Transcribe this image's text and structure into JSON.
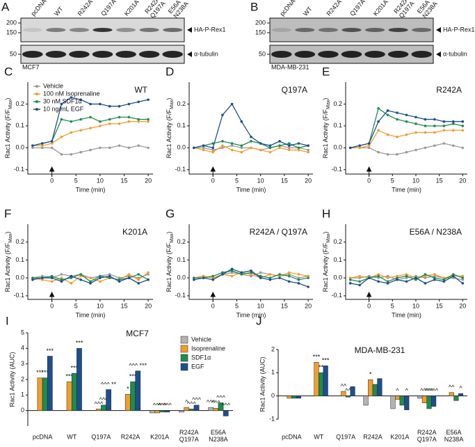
{
  "blots": [
    {
      "label": "A",
      "lanes": [
        "pcDNA",
        "WT",
        "R242A",
        "Q197A",
        "K201A",
        "R242A\nQ197A",
        "E56A\nN238A"
      ],
      "markers": [
        200,
        150,
        50
      ],
      "bands": [
        "HA-P-Rex1",
        "α-tubulin"
      ],
      "cell_line": "MCF7"
    },
    {
      "label": "B",
      "lanes": [
        "pcDNA",
        "WT",
        "R242A",
        "Q197A",
        "K201A",
        "R242A\nQ197A",
        "E56A\nN238A"
      ],
      "markers": [
        200,
        150,
        50
      ],
      "bands": [
        "HA-P-Rex1",
        "α-tubulin"
      ],
      "cell_line": "MDA-MB-231"
    }
  ],
  "chart_data": [
    {
      "type": "line",
      "label": "C",
      "title": "WT",
      "xlabel": "Time (min)",
      "ylabel": "Rac1 Activity (F/F",
      "ylabel_sub": "Max",
      "ylabel_end": ")",
      "legend": "upper left",
      "x": [
        -4,
        -2,
        0,
        2,
        4,
        6,
        8,
        10,
        12,
        14,
        16,
        18,
        20
      ],
      "xlim": [
        -5,
        21
      ],
      "xticks": [
        0,
        5,
        10,
        15,
        20
      ],
      "ylim": [
        -0.12,
        0.3
      ],
      "yticks": [
        -0.1,
        {
          "value": 0,
          "label": "0.0"
        },
        0.1,
        0.2
      ],
      "series": [
        {
          "name": "Vehicle",
          "color": "#9a9a9a",
          "values": [
            0,
            0,
            0,
            -0.03,
            -0.03,
            -0.02,
            -0.01,
            0,
            0,
            0.01,
            0,
            0.01,
            0
          ]
        },
        {
          "name": "100 nM Isoprenaline",
          "color": "#f39c2c",
          "values": [
            0.01,
            0.01,
            0.02,
            0.05,
            0.07,
            0.08,
            0.09,
            0.1,
            0.11,
            0.11,
            0.12,
            0.12,
            0.12
          ]
        },
        {
          "name": "30 nM SDF1α",
          "color": "#1e8c4e",
          "values": [
            0.01,
            0.02,
            0.03,
            0.13,
            0.12,
            0.13,
            0.14,
            0.12,
            0.13,
            0.14,
            0.14,
            0.13,
            0.13
          ]
        },
        {
          "name": "10 ng/mL EGF",
          "color": "#1d4f8c",
          "values": [
            0.01,
            0.02,
            0.03,
            0.2,
            0.23,
            0.22,
            0.2,
            0.2,
            0.19,
            0.19,
            0.2,
            0.21,
            0.22
          ]
        }
      ]
    },
    {
      "type": "line",
      "label": "D",
      "title": "Q197A",
      "xlabel": "Time (min)",
      "ylabel": "Rac1 Activity (F/F",
      "ylabel_sub": "Max",
      "ylabel_end": ")",
      "x": [
        -4,
        -2,
        0,
        2,
        4,
        6,
        8,
        10,
        12,
        14,
        16,
        18,
        20
      ],
      "xlim": [
        -5,
        21
      ],
      "xticks": [
        0,
        5,
        10,
        15,
        20
      ],
      "ylim": [
        -0.12,
        0.3
      ],
      "yticks": [
        -0.1,
        {
          "value": 0,
          "label": "0.0"
        },
        0.1,
        0.2
      ],
      "series": [
        {
          "color": "#9a9a9a",
          "values": [
            0,
            0,
            -0.01,
            0,
            0.01,
            0,
            0,
            -0.01,
            0,
            0.01,
            0,
            0,
            -0.01
          ]
        },
        {
          "color": "#f39c2c",
          "values": [
            0,
            -0.01,
            -0.02,
            0.01,
            -0.01,
            -0.02,
            0,
            -0.01,
            -0.02,
            0,
            -0.01,
            -0.01,
            -0.02
          ]
        },
        {
          "color": "#1e8c4e",
          "values": [
            0,
            0.01,
            0.02,
            0.03,
            0.02,
            0.01,
            0.03,
            0.02,
            0,
            0.01,
            0.02,
            0,
            0.01
          ]
        },
        {
          "color": "#1d4f8c",
          "values": [
            0,
            0.01,
            0,
            0.15,
            0.2,
            0.12,
            0.05,
            0.02,
            0.01,
            0.03,
            0.01,
            0.02,
            0.01
          ]
        }
      ]
    },
    {
      "type": "line",
      "label": "E",
      "title": "R242A",
      "xlabel": "Time (min)",
      "ylabel": "Rac1 Activity (F/F",
      "ylabel_sub": "Max",
      "ylabel_end": ")",
      "x": [
        -4,
        -2,
        0,
        2,
        4,
        6,
        8,
        10,
        12,
        14,
        16,
        18,
        20
      ],
      "xlim": [
        -5,
        21
      ],
      "xticks": [
        0,
        5,
        10,
        15,
        20
      ],
      "ylim": [
        -0.12,
        0.3
      ],
      "yticks": [
        -0.1,
        {
          "value": 0,
          "label": "0.0"
        },
        0.1,
        0.2
      ],
      "series": [
        {
          "color": "#9a9a9a",
          "values": [
            0,
            0,
            0,
            -0.02,
            -0.03,
            -0.03,
            -0.02,
            -0.01,
            0,
            0.01,
            0.02,
            0.01,
            0
          ]
        },
        {
          "color": "#f39c2c",
          "values": [
            0,
            0,
            0.01,
            0.08,
            0.06,
            0.05,
            0.06,
            0.07,
            0.07,
            0.07,
            0.08,
            0.08,
            0.08
          ]
        },
        {
          "color": "#1e8c4e",
          "values": [
            0,
            0.01,
            0.02,
            0.18,
            0.15,
            0.13,
            0.12,
            0.11,
            0.1,
            0.1,
            0.1,
            0.11,
            0.1
          ]
        },
        {
          "color": "#1d4f8c",
          "values": [
            0,
            0.01,
            0.02,
            0.12,
            0.17,
            0.16,
            0.15,
            0.14,
            0.13,
            0.13,
            0.12,
            0.12,
            0.12
          ]
        }
      ]
    },
    {
      "type": "line",
      "label": "F",
      "title": "K201A",
      "xlabel": "Time (min)",
      "ylabel": "Rac1 Activity (F/F",
      "ylabel_sub": "Max",
      "ylabel_end": ")",
      "x": [
        -4,
        -2,
        0,
        2,
        4,
        6,
        8,
        10,
        12,
        14,
        16,
        18,
        20
      ],
      "xlim": [
        -5,
        21
      ],
      "xticks": [
        0,
        5,
        10,
        15,
        20
      ],
      "ylim": [
        -0.12,
        0.3
      ],
      "yticks": [
        -0.1,
        {
          "value": 0,
          "label": "0.0"
        },
        0.1,
        0.2
      ],
      "series": [
        {
          "color": "#9a9a9a",
          "values": [
            0,
            0.01,
            0,
            0.02,
            0.01,
            0.02,
            0,
            0.01,
            0.02,
            0,
            0.01,
            0,
            0.02
          ]
        },
        {
          "color": "#f39c2c",
          "values": [
            0,
            -0.01,
            -0.02,
            0,
            -0.03,
            0.01,
            0,
            -0.02,
            0,
            -0.01,
            0.02,
            -0.01,
            0.03
          ]
        },
        {
          "color": "#1e8c4e",
          "values": [
            0,
            0,
            0.01,
            -0.01,
            0,
            0.02,
            -0.02,
            0.01,
            0,
            -0.01,
            0,
            0.02,
            -0.01
          ]
        },
        {
          "color": "#1d4f8c",
          "values": [
            -0.01,
            0,
            0,
            -0.02,
            0.01,
            -0.01,
            -0.03,
            0,
            0.01,
            -0.02,
            0,
            -0.03,
            -0.01
          ]
        }
      ]
    },
    {
      "type": "line",
      "label": "G",
      "title": "R242A / Q197A",
      "xlabel": "Time (min)",
      "ylabel": "Rac1 Activity (F/F",
      "ylabel_sub": "Max",
      "ylabel_end": ")",
      "x": [
        -4,
        -2,
        0,
        2,
        4,
        6,
        8,
        10,
        12,
        14,
        16,
        18,
        20
      ],
      "xlim": [
        -5,
        21
      ],
      "xticks": [
        0,
        5,
        10,
        15,
        20
      ],
      "ylim": [
        -0.12,
        0.3
      ],
      "yticks": [
        -0.1,
        {
          "value": 0,
          "label": "0.0"
        },
        0.1,
        0.2
      ],
      "series": [
        {
          "color": "#9a9a9a",
          "values": [
            0,
            0.01,
            0,
            0.02,
            0.03,
            0.02,
            0.01,
            0.03,
            0.02,
            0.01,
            0.02,
            0,
            0.01
          ]
        },
        {
          "color": "#f39c2c",
          "values": [
            0,
            0.01,
            0,
            0.02,
            0.01,
            0.03,
            0.02,
            0,
            0.02,
            0.01,
            0.03,
            0.02,
            0.01
          ]
        },
        {
          "color": "#1e8c4e",
          "values": [
            0,
            0,
            0.01,
            0.03,
            0.04,
            0.02,
            0.03,
            0.01,
            0,
            0.02,
            0.01,
            -0.01,
            0
          ]
        },
        {
          "color": "#1d4f8c",
          "values": [
            -0.01,
            0,
            -0.01,
            0.02,
            0.05,
            0.03,
            0.04,
            0,
            -0.01,
            0,
            -0.02,
            -0.03,
            -0.05
          ]
        }
      ]
    },
    {
      "type": "line",
      "label": "H",
      "title": "E56A / N238A",
      "xlabel": "Time (min)",
      "ylabel": "Rac1 Activity (F/F",
      "ylabel_sub": "Max",
      "ylabel_end": ")",
      "x": [
        -4,
        -2,
        0,
        2,
        4,
        6,
        8,
        10,
        12,
        14,
        16,
        18,
        20
      ],
      "xlim": [
        -5,
        21
      ],
      "xticks": [
        0,
        5,
        10,
        15,
        20
      ],
      "ylim": [
        -0.12,
        0.3
      ],
      "yticks": [
        -0.1,
        {
          "value": 0,
          "label": "0.0"
        },
        0.1,
        0.2
      ],
      "series": [
        {
          "color": "#9a9a9a",
          "values": [
            0,
            0,
            0.01,
            0,
            0.01,
            -0.01,
            0,
            0.01,
            0,
            0.01,
            0,
            0,
            -0.01
          ]
        },
        {
          "color": "#f39c2c",
          "values": [
            0,
            0.01,
            0,
            0.02,
            0,
            0.01,
            0.02,
            0,
            0.01,
            0.02,
            0,
            0.01,
            0.01
          ]
        },
        {
          "color": "#1e8c4e",
          "values": [
            -0.01,
            -0.02,
            0,
            0.01,
            -0.02,
            0,
            0.01,
            -0.01,
            0.02,
            0,
            -0.01,
            0.02,
            0
          ]
        },
        {
          "color": "#1d4f8c",
          "values": [
            -0.03,
            -0.04,
            0,
            -0.02,
            -0.03,
            -0.01,
            -0.02,
            0,
            -0.03,
            -0.01,
            -0.02,
            0.01,
            -0.03
          ]
        }
      ]
    },
    {
      "type": "bar",
      "label": "I",
      "title": "MCF7",
      "ylabel": "Rac1 Activity (AUC)",
      "legend": "upper right",
      "categories": [
        "pcDNA",
        "WT",
        "Q197A",
        "R242A",
        "K201A",
        "R242A\nQ197A",
        "E56A\nN238A"
      ],
      "ylim": [
        -1,
        5
      ],
      "yticks": [
        0,
        1,
        2,
        3,
        4,
        5
      ],
      "series": [
        {
          "name": "Vehicle",
          "color": "#b3b3b3",
          "values": [
            0,
            0,
            0,
            0,
            -0.15,
            -0.1,
            0.2
          ],
          "significance": [
            null,
            null,
            null,
            null,
            null,
            null,
            "^^^"
          ]
        },
        {
          "name": "Isoprenaline",
          "color": "#f39c2c",
          "values": [
            2.1,
            1.85,
            0.1,
            1.05,
            -0.15,
            0.2,
            0.15
          ],
          "significance": [
            "***",
            "***",
            "^^^",
            "*",
            "^^^",
            "^",
            "^^^"
          ]
        },
        {
          "name": "SDF1α",
          "color": "#1e8c4e",
          "values": [
            2.1,
            2.4,
            0.35,
            1.85,
            -0.1,
            0.1,
            0.5
          ],
          "significance": [
            "***",
            "***",
            "^^^",
            "***",
            "^^^",
            "^^^",
            "^^^"
          ]
        },
        {
          "name": "EGF",
          "color": "#1d4f8c",
          "values": [
            3.5,
            4.0,
            1.35,
            2.55,
            -0.1,
            0.35,
            -0.35
          ],
          "significance": [
            "***",
            "***",
            "^^^ **",
            "^^^ ***",
            "^^^",
            "^^^",
            "^^^"
          ]
        }
      ]
    },
    {
      "type": "bar",
      "label": "J",
      "title": "MDA-MB-231",
      "ylabel": "Rac1 Activity (AUC)",
      "categories": [
        "pcDNA",
        "WT",
        "Q197A",
        "R242A",
        "K201A",
        "R242A\nQ197A",
        "E56A\nN238A"
      ],
      "ylim": [
        -1,
        2
      ],
      "yticks": [
        -1,
        0,
        1,
        2
      ],
      "series": [
        {
          "color": "#b3b3b3",
          "values": [
            0,
            0,
            0,
            -0.4,
            -0.55,
            -0.1,
            0
          ],
          "significance": [
            null,
            null,
            null,
            null,
            null,
            null,
            null
          ]
        },
        {
          "color": "#f39c2c",
          "values": [
            -0.1,
            1.45,
            0.2,
            0.7,
            -0.15,
            -0.3,
            0.15
          ],
          "significance": [
            null,
            "***",
            "^^",
            "*",
            "^",
            "^^^",
            "^^"
          ]
        },
        {
          "color": "#1e8c4e",
          "values": [
            -0.1,
            1.0,
            -0.05,
            0.5,
            -0.4,
            -0.55,
            -0.2
          ],
          "significance": [
            null,
            "**",
            "^^",
            null,
            null,
            "^^^",
            null
          ]
        },
        {
          "color": "#1d4f8c",
          "values": [
            -0.1,
            1.3,
            0.4,
            0.75,
            -0.6,
            -0.45,
            0.1
          ],
          "significance": [
            null,
            "***",
            null,
            null,
            "^",
            "^^^",
            "^"
          ]
        }
      ]
    }
  ]
}
